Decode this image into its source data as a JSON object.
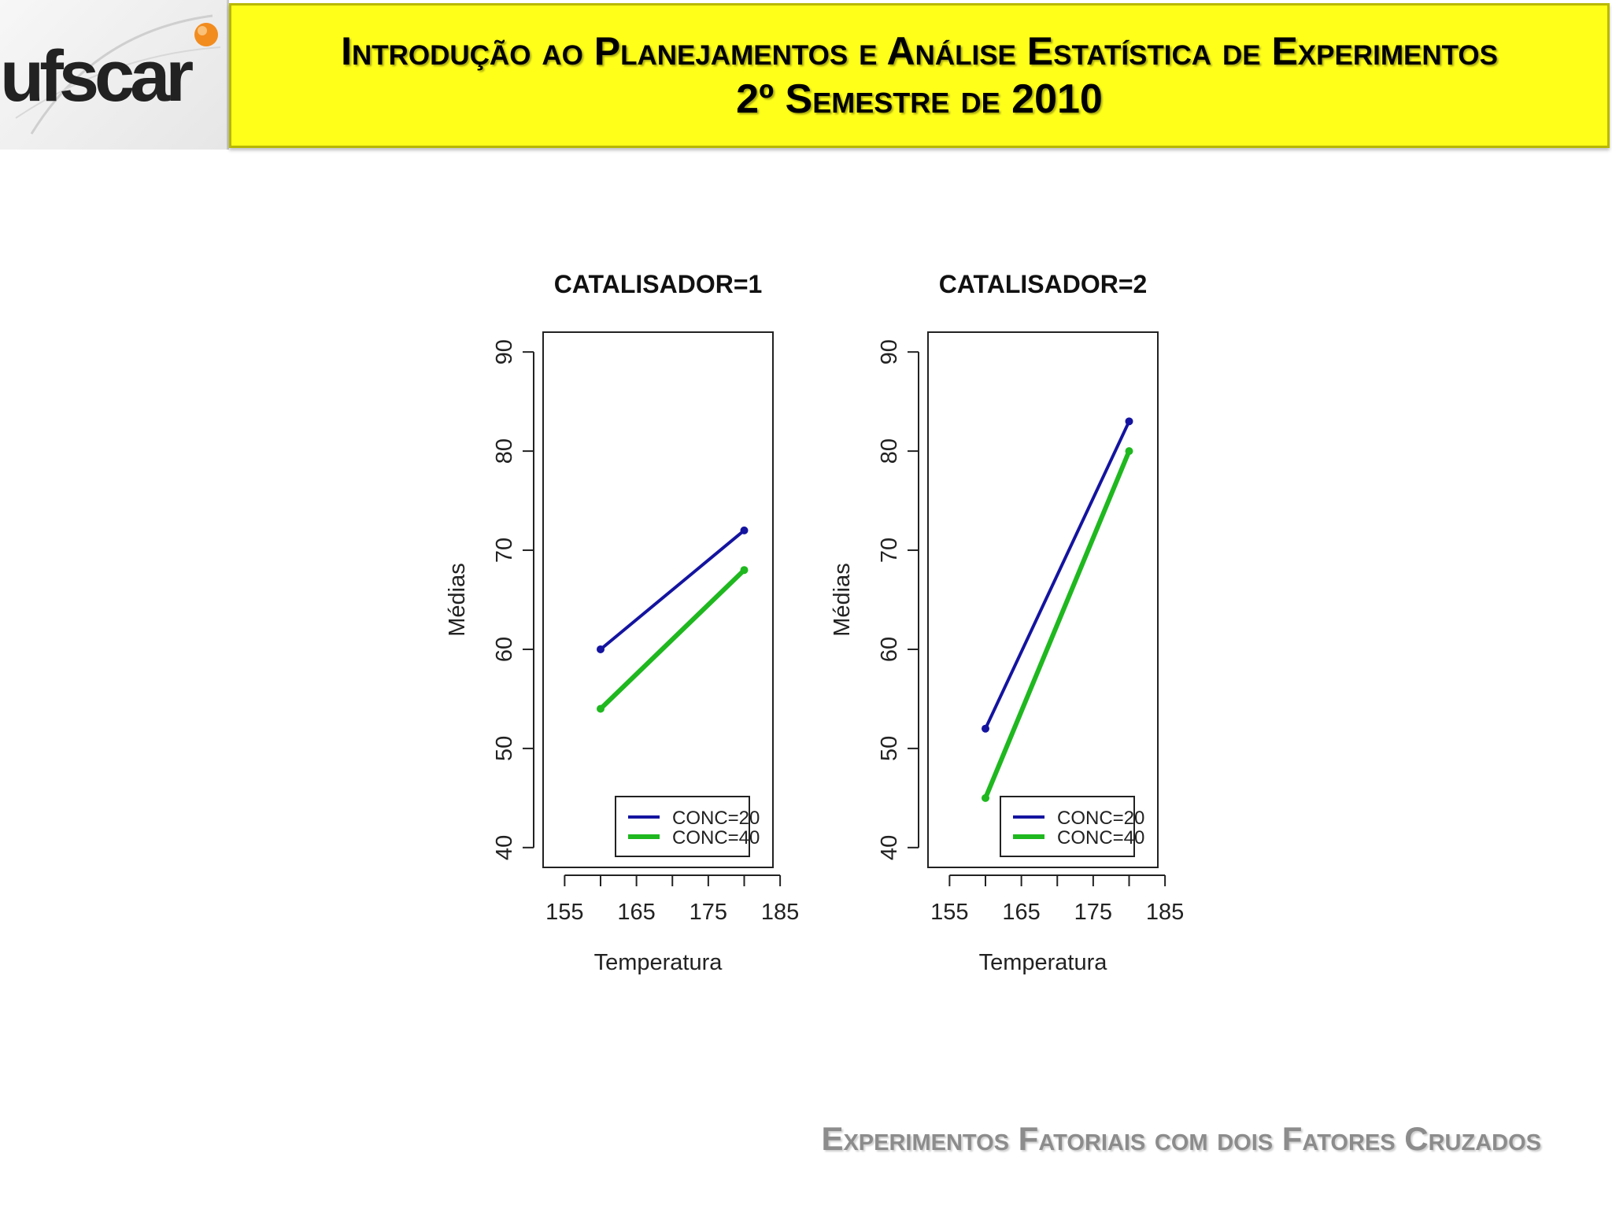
{
  "header": {
    "title_line1": "Introdução ao Planejamentos e Análise Estatística de Experimentos",
    "title_line2": "2º Semestre de 2010"
  },
  "logo": {
    "text": "ufscar",
    "icon": "ufscar-logo-icon"
  },
  "footer": {
    "text": "Experimentos Fatoriais com dois Fatores Cruzados"
  },
  "colors": {
    "header_bg": "#ffff1a",
    "conc20": "#1414a0",
    "conc40": "#1fb81f",
    "footer": "#8c8c8c"
  },
  "chart_data": [
    {
      "type": "line",
      "title": "CATALISADOR=1",
      "xlabel": "Temperatura",
      "ylabel": "Médias",
      "xlim": [
        152,
        184
      ],
      "ylim": [
        38,
        92
      ],
      "xticks": [
        155,
        160,
        165,
        170,
        175,
        180,
        185
      ],
      "xtick_labels": [
        "155",
        "",
        "165",
        "",
        "175",
        "",
        "185"
      ],
      "yticks": [
        40,
        50,
        60,
        70,
        80,
        90
      ],
      "x": [
        160,
        180
      ],
      "series": [
        {
          "name": "CONC=20",
          "values": [
            60,
            72
          ]
        },
        {
          "name": "CONC=40",
          "values": [
            54,
            68
          ]
        }
      ],
      "legend": "bottom-right"
    },
    {
      "type": "line",
      "title": "CATALISADOR=2",
      "xlabel": "Temperatura",
      "ylabel": "Médias",
      "xlim": [
        152,
        184
      ],
      "ylim": [
        38,
        92
      ],
      "xticks": [
        155,
        160,
        165,
        170,
        175,
        180,
        185
      ],
      "xtick_labels": [
        "155",
        "",
        "165",
        "",
        "175",
        "",
        "185"
      ],
      "yticks": [
        40,
        50,
        60,
        70,
        80,
        90
      ],
      "x": [
        160,
        180
      ],
      "series": [
        {
          "name": "CONC=20",
          "values": [
            52,
            83
          ]
        },
        {
          "name": "CONC=40",
          "values": [
            45,
            80
          ]
        }
      ],
      "legend": "bottom-right"
    }
  ]
}
